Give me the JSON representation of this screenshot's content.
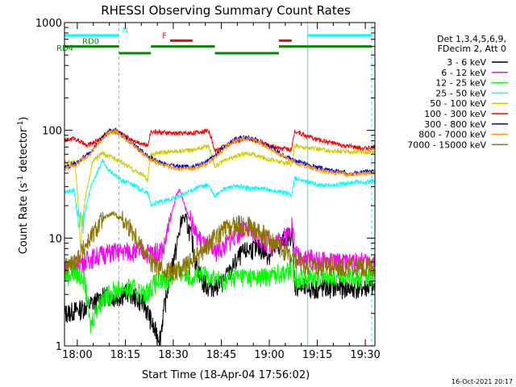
{
  "chart_data": {
    "type": "line",
    "title": "RHESSI Observing Summary Count Rates",
    "xlabel": "Start Time (18-Apr-04 17:56:02)",
    "ylabel_main": "Count Rate (s",
    "ylabel_sup1": "-1",
    "ylabel_mid": " detector",
    "ylabel_sup2": "-1",
    "ylabel_end": ")",
    "yscale": "log",
    "ylim": [
      1,
      1000
    ],
    "xlim_minutes": [
      0,
      97
    ],
    "x_tick_minutes": [
      4,
      19,
      34,
      49,
      64,
      79,
      94
    ],
    "x_tick_labels": [
      "18:00",
      "18:15",
      "18:30",
      "18:45",
      "19:00",
      "19:15",
      "19:30"
    ],
    "y_tick_values": [
      1,
      10,
      100,
      1000
    ],
    "y_tick_labels": [
      "1",
      "10",
      "100",
      "1000"
    ],
    "legend_header": [
      "Det 1,3,4,5,6,9,",
      "FDecim 2, Att 0"
    ],
    "series": [
      {
        "name": "3 - 6 keV",
        "color": "#000000",
        "points": [
          [
            0,
            2
          ],
          [
            5,
            2.2
          ],
          [
            10,
            2.6
          ],
          [
            13,
            3
          ],
          [
            16,
            2.8
          ],
          [
            20,
            3.2
          ],
          [
            25,
            2.4
          ],
          [
            28,
            1.4
          ],
          [
            30,
            1.2
          ],
          [
            32,
            3
          ],
          [
            35,
            8
          ],
          [
            37,
            16
          ],
          [
            39,
            12
          ],
          [
            41,
            6
          ],
          [
            43,
            4
          ],
          [
            45,
            3.5
          ],
          [
            49,
            3.8
          ],
          [
            52,
            5
          ],
          [
            55,
            7
          ],
          [
            58,
            8
          ],
          [
            61,
            8
          ],
          [
            64,
            7
          ],
          [
            67,
            8.5
          ],
          [
            69,
            10
          ],
          [
            71,
            11
          ],
          [
            72,
            3.6
          ],
          [
            76,
            3.4
          ],
          [
            80,
            3.4
          ],
          [
            85,
            3.5
          ],
          [
            90,
            3.4
          ],
          [
            97,
            3.5
          ]
        ]
      },
      {
        "name": "6 - 12 keV",
        "color": "#ff00ff",
        "points": [
          [
            0,
            5.5
          ],
          [
            4,
            5.8
          ],
          [
            8,
            6.5
          ],
          [
            12,
            7.2
          ],
          [
            16,
            7.5
          ],
          [
            20,
            7.6
          ],
          [
            25,
            7.5
          ],
          [
            28,
            7.4
          ],
          [
            31,
            8
          ],
          [
            33,
            14
          ],
          [
            35,
            25
          ],
          [
            36,
            28
          ],
          [
            38,
            18
          ],
          [
            41,
            11
          ],
          [
            44,
            8.5
          ],
          [
            47,
            7.5
          ],
          [
            50,
            8.5
          ],
          [
            53,
            10.5
          ],
          [
            56,
            12
          ],
          [
            59,
            11
          ],
          [
            62,
            9.5
          ],
          [
            65,
            9
          ],
          [
            68,
            10
          ],
          [
            70,
            11
          ],
          [
            71,
            14
          ],
          [
            72,
            7.2
          ],
          [
            76,
            6.6
          ],
          [
            80,
            6.2
          ],
          [
            85,
            6
          ],
          [
            90,
            6
          ],
          [
            97,
            6.1
          ]
        ]
      },
      {
        "name": "12 - 25 keV",
        "color": "#00ff00",
        "points": [
          [
            0,
            4.5
          ],
          [
            3,
            4.8
          ],
          [
            6,
            4.2
          ],
          [
            8,
            1.5
          ],
          [
            10,
            2.2
          ],
          [
            12,
            2.8
          ],
          [
            15,
            3.2
          ],
          [
            18,
            3.5
          ],
          [
            22,
            3.4
          ],
          [
            25,
            3
          ],
          [
            28,
            3.8
          ],
          [
            32,
            4.2
          ],
          [
            36,
            4.8
          ],
          [
            40,
            4.5
          ],
          [
            45,
            4.6
          ],
          [
            49,
            4
          ],
          [
            52,
            4.4
          ],
          [
            56,
            4.5
          ],
          [
            60,
            4.3
          ],
          [
            64,
            4.5
          ],
          [
            67,
            4.8
          ],
          [
            70,
            5
          ],
          [
            71,
            5.5
          ],
          [
            72,
            4.4
          ],
          [
            76,
            4.3
          ],
          [
            80,
            4.5
          ],
          [
            85,
            4.6
          ],
          [
            90,
            4.4
          ],
          [
            97,
            4.5
          ]
        ]
      },
      {
        "name": "25 - 50 keV",
        "color": "#00ffff",
        "points": [
          [
            0,
            27
          ],
          [
            3,
            28
          ],
          [
            4,
            15
          ],
          [
            6,
            14
          ],
          [
            8,
            28
          ],
          [
            10,
            40
          ],
          [
            12,
            52
          ],
          [
            13,
            45
          ],
          [
            15,
            40
          ],
          [
            18,
            34
          ],
          [
            21,
            32
          ],
          [
            24,
            28
          ],
          [
            26,
            26
          ],
          [
            27,
            20
          ],
          [
            28,
            21
          ],
          [
            31,
            22
          ],
          [
            35,
            24
          ],
          [
            38,
            26
          ],
          [
            42,
            30
          ],
          [
            45,
            31
          ],
          [
            47,
            24
          ],
          [
            49,
            28
          ],
          [
            52,
            30
          ],
          [
            55,
            30
          ],
          [
            58,
            29
          ],
          [
            61,
            29
          ],
          [
            64,
            28
          ],
          [
            67,
            27
          ],
          [
            70,
            26
          ],
          [
            71,
            25
          ],
          [
            72,
            36
          ],
          [
            75,
            34
          ],
          [
            78,
            32
          ],
          [
            81,
            31
          ],
          [
            84,
            31
          ],
          [
            87,
            32
          ],
          [
            90,
            33
          ],
          [
            94,
            33
          ],
          [
            97,
            34
          ]
        ]
      },
      {
        "name": "50 - 100 keV",
        "color": "#cccc00",
        "points": [
          [
            0,
            50
          ],
          [
            3,
            52
          ],
          [
            4,
            28
          ],
          [
            5,
            7
          ],
          [
            7,
            28
          ],
          [
            9,
            52
          ],
          [
            12,
            62
          ],
          [
            13,
            58
          ],
          [
            16,
            55
          ],
          [
            19,
            48
          ],
          [
            22,
            42
          ],
          [
            25,
            38
          ],
          [
            26,
            33
          ],
          [
            27,
            60
          ],
          [
            30,
            62
          ],
          [
            34,
            64
          ],
          [
            38,
            65
          ],
          [
            42,
            68
          ],
          [
            45,
            72
          ],
          [
            47,
            46
          ],
          [
            50,
            52
          ],
          [
            54,
            58
          ],
          [
            57,
            62
          ],
          [
            60,
            58
          ],
          [
            63,
            55
          ],
          [
            66,
            52
          ],
          [
            69,
            50
          ],
          [
            71,
            48
          ],
          [
            72,
            72
          ],
          [
            75,
            70
          ],
          [
            78,
            68
          ],
          [
            81,
            66
          ],
          [
            84,
            64
          ],
          [
            87,
            64
          ],
          [
            90,
            63
          ],
          [
            94,
            63
          ],
          [
            97,
            64
          ]
        ]
      },
      {
        "name": "100 - 300 keV",
        "color": "#ff0000",
        "points": [
          [
            0,
            80
          ],
          [
            3,
            85
          ],
          [
            5,
            78
          ],
          [
            7,
            72
          ],
          [
            10,
            80
          ],
          [
            13,
            92
          ],
          [
            15,
            100
          ],
          [
            17,
            95
          ],
          [
            20,
            85
          ],
          [
            23,
            78
          ],
          [
            26,
            72
          ],
          [
            27,
            98
          ],
          [
            30,
            96
          ],
          [
            34,
            94
          ],
          [
            38,
            94
          ],
          [
            42,
            96
          ],
          [
            45,
            100
          ],
          [
            47,
            64
          ],
          [
            50,
            72
          ],
          [
            54,
            80
          ],
          [
            57,
            85
          ],
          [
            60,
            80
          ],
          [
            63,
            74
          ],
          [
            66,
            70
          ],
          [
            69,
            68
          ],
          [
            71,
            66
          ],
          [
            72,
            100
          ],
          [
            75,
            90
          ],
          [
            78,
            84
          ],
          [
            81,
            80
          ],
          [
            84,
            76
          ],
          [
            87,
            72
          ],
          [
            90,
            70
          ],
          [
            94,
            68
          ],
          [
            97,
            70
          ]
        ]
      },
      {
        "name": "300 - 800 keV",
        "color": "#0000cc",
        "points": [
          [
            0,
            45
          ],
          [
            4,
            50
          ],
          [
            8,
            62
          ],
          [
            11,
            80
          ],
          [
            14,
            98
          ],
          [
            16,
            100
          ],
          [
            18,
            90
          ],
          [
            20,
            80
          ],
          [
            23,
            68
          ],
          [
            26,
            58
          ],
          [
            29,
            52
          ],
          [
            32,
            48
          ],
          [
            36,
            46
          ],
          [
            40,
            46
          ],
          [
            44,
            50
          ],
          [
            47,
            58
          ],
          [
            50,
            70
          ],
          [
            53,
            82
          ],
          [
            56,
            86
          ],
          [
            59,
            84
          ],
          [
            62,
            76
          ],
          [
            65,
            68
          ],
          [
            68,
            60
          ],
          [
            71,
            54
          ],
          [
            74,
            50
          ],
          [
            78,
            46
          ],
          [
            82,
            43
          ],
          [
            86,
            41
          ],
          [
            90,
            40
          ],
          [
            94,
            41
          ],
          [
            97,
            42
          ]
        ]
      },
      {
        "name": "800 - 7000 keV",
        "color": "#ff9900",
        "points": [
          [
            0,
            44
          ],
          [
            4,
            49
          ],
          [
            8,
            60
          ],
          [
            11,
            78
          ],
          [
            14,
            96
          ],
          [
            16,
            98
          ],
          [
            18,
            88
          ],
          [
            20,
            78
          ],
          [
            23,
            66
          ],
          [
            26,
            56
          ],
          [
            29,
            50
          ],
          [
            32,
            46
          ],
          [
            36,
            44
          ],
          [
            40,
            44
          ],
          [
            44,
            48
          ],
          [
            47,
            56
          ],
          [
            50,
            68
          ],
          [
            53,
            80
          ],
          [
            56,
            84
          ],
          [
            59,
            82
          ],
          [
            62,
            74
          ],
          [
            65,
            66
          ],
          [
            68,
            58
          ],
          [
            71,
            52
          ],
          [
            74,
            48
          ],
          [
            78,
            44
          ],
          [
            82,
            41
          ],
          [
            86,
            40
          ],
          [
            90,
            39
          ],
          [
            94,
            40
          ],
          [
            97,
            41
          ]
        ]
      },
      {
        "name": "7000 - 15000 keV",
        "color": "#8b7300",
        "points": [
          [
            0,
            5.2
          ],
          [
            3,
            6
          ],
          [
            6,
            8
          ],
          [
            9,
            11
          ],
          [
            12,
            15
          ],
          [
            15,
            17
          ],
          [
            18,
            15
          ],
          [
            21,
            12
          ],
          [
            24,
            8.5
          ],
          [
            27,
            6
          ],
          [
            30,
            5.2
          ],
          [
            34,
            5
          ],
          [
            38,
            5.5
          ],
          [
            42,
            7
          ],
          [
            46,
            9.5
          ],
          [
            50,
            12
          ],
          [
            54,
            13.5
          ],
          [
            58,
            13
          ],
          [
            62,
            11
          ],
          [
            66,
            9
          ],
          [
            70,
            7.2
          ],
          [
            72,
            6.2
          ],
          [
            76,
            5.8
          ],
          [
            80,
            5.6
          ],
          [
            85,
            5.5
          ],
          [
            90,
            5.5
          ],
          [
            97,
            5.6
          ]
        ]
      }
    ],
    "flag_bars": [
      {
        "label": "N",
        "color": "#00ffff",
        "segments": [
          [
            0,
            17
          ],
          [
            76,
            96
          ]
        ],
        "level": 760
      },
      {
        "label": "F",
        "color": "#ff0000",
        "segments": [
          [
            33,
            40
          ],
          [
            67,
            71
          ]
        ],
        "level": 680
      },
      {
        "label": "RD0",
        "color": "#008800",
        "segments": [
          [
            0,
            17
          ],
          [
            27,
            47
          ],
          [
            67,
            96
          ]
        ],
        "level": 600
      },
      {
        "label": "RD4",
        "color": "#008800",
        "segments": [
          [
            17,
            27
          ],
          [
            47,
            67
          ]
        ],
        "level": 520
      }
    ],
    "vlines_solid_minutes": [
      0,
      76
    ],
    "vlines_dashed_minutes": [
      17,
      96
    ],
    "timestamp": "16-Oct-2021 20:17"
  }
}
